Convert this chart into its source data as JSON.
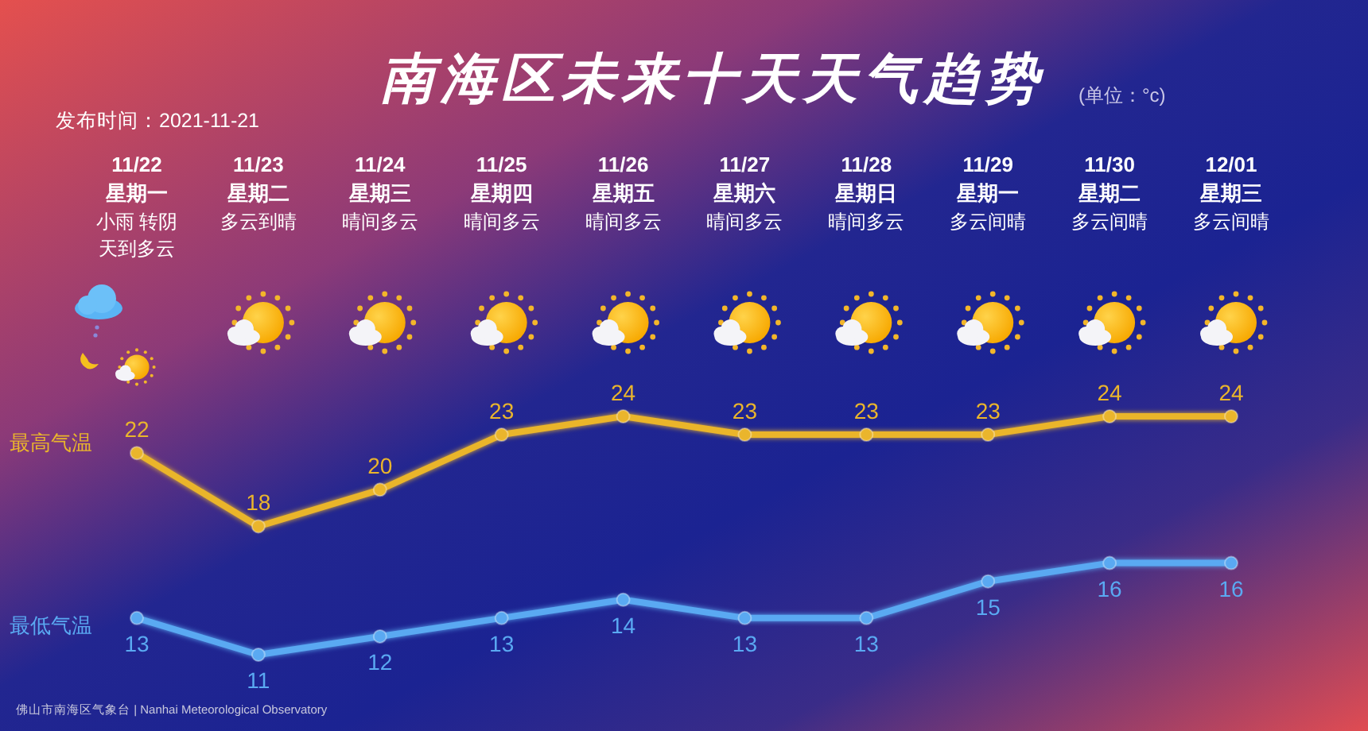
{
  "chart_data": {
    "type": "line",
    "title": "南海区未来十天天气趋势",
    "subtitle": "(单位：°c)",
    "annotations": [
      "发布时间：2021-11-21",
      "佛山市南海区气象台 | Nanhai Meteorological Observatory",
      "小雨 转阴天到多云",
      "多云到晴",
      "晴间多云",
      "晴间多云",
      "晴间多云",
      "晴间多云",
      "晴间多云",
      "多云间晴",
      "多云间晴",
      "多云间晴"
    ],
    "categories": [
      "11/22\n星期一",
      "11/23\n星期二",
      "11/24\n星期三",
      "11/25\n星期四",
      "11/26\n星期五",
      "11/27\n星期六",
      "11/28\n星期日",
      "11/29\n星期一",
      "11/30\n星期二",
      "12/01\n星期三"
    ],
    "series": [
      {
        "name": "最高气温",
        "color": "#eab52c",
        "values": [
          22,
          18,
          20,
          23,
          24,
          23,
          23,
          23,
          24,
          24
        ]
      },
      {
        "name": "最低气温",
        "color": "#5aa9f2",
        "values": [
          13,
          11,
          12,
          13,
          14,
          13,
          13,
          15,
          16,
          16
        ]
      }
    ],
    "data_labels": true,
    "marker": "circle"
  }
}
